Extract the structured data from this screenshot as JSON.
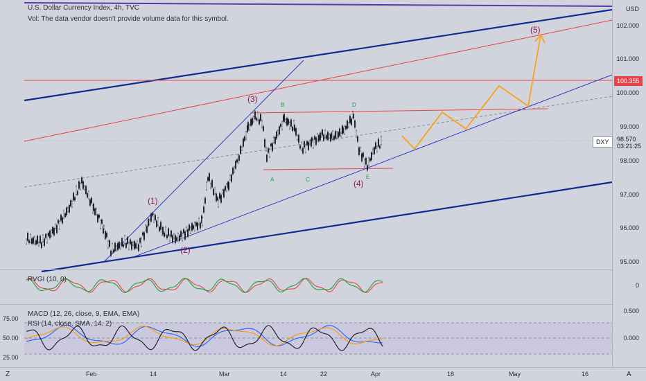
{
  "legend": {
    "title": "U.S. Dollar Currency Index, 4h, TVC",
    "vol_note": "Vol: The data vendor doesn't provide volume data for this symbol.",
    "rvgi": "RVGI (10, 0)",
    "macd": "MACD (12, 26, close, 9, EMA, EMA)",
    "rsi": "RSI (14, close, SMA, 14, 2)"
  },
  "axis": {
    "currency": "USD",
    "prices": [
      "102.000",
      "101.000",
      "100.000",
      "99.000",
      "98.000",
      "97.000",
      "96.000",
      "95.000"
    ],
    "rvgi": [
      "0"
    ],
    "macd": [
      "0.500",
      "0.000"
    ],
    "rsi": [
      "75.00",
      "50.00",
      "25.00"
    ]
  },
  "tags": {
    "level": "100.355",
    "symbol": "DXY",
    "last": "98.570",
    "countdown": "03:21:25"
  },
  "time": [
    "Feb",
    "14",
    "Mar",
    "14",
    "22",
    "Apr",
    "18",
    "May",
    "16"
  ],
  "buttons": {
    "left": "Z",
    "right": "A"
  },
  "waves": [
    "(1)",
    "(2)",
    "(3)",
    "(4)",
    "(5)"
  ],
  "abcde": [
    "A",
    "B",
    "C",
    "D",
    "E"
  ],
  "colors": {
    "channel": "#0d2b8f",
    "thin_blue": "#2a3ac0",
    "red": "#e8434a",
    "orange": "#f7a21b",
    "wave_label": "#8b1a5c",
    "green_label": "#1aa141"
  }
}
